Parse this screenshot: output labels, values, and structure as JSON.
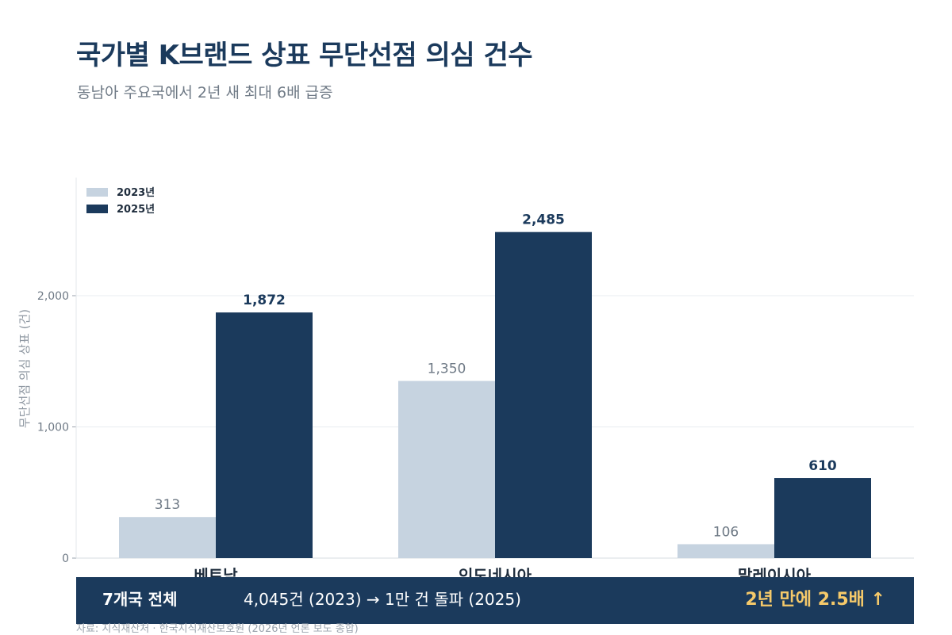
{
  "header": {
    "title": "국가별 K브랜드 상표 무단선점 의심 건수",
    "subtitle": "동남아 주요국에서 2년 새 최대 6배 급증"
  },
  "chart_data": {
    "type": "bar",
    "categories": [
      "베트남",
      "인도네시아",
      "말레이시아"
    ],
    "series": [
      {
        "name": "2023년",
        "values": [
          313,
          1350,
          106
        ],
        "color": "#c6d3e0",
        "label_color": "#6f7a86"
      },
      {
        "name": "2025년",
        "values": [
          1872,
          2485,
          610
        ],
        "color": "#1b3a5c",
        "label_color": "#1b3a5c"
      }
    ],
    "value_labels": [
      [
        "313",
        "1,350",
        "106"
      ],
      [
        "1,872",
        "2,485",
        "610"
      ]
    ],
    "ylabel": "무단선점 의심 상표 (건)",
    "ylim": [
      0,
      2900
    ],
    "yticks": [
      0,
      1000,
      2000
    ],
    "ytick_labels": [
      "0",
      "1,000",
      "2,000"
    ],
    "grid": true,
    "legend_position": "top-left"
  },
  "summary": {
    "label": "7개국 전체",
    "stat": "4,045건 (2023)  →  1만 건 돌파 (2025)",
    "highlight": "2년 만에 2.5배 ↑"
  },
  "source": "자료: 지식재산처 · 한국지식재산보호원 (2026년 언론 보도 종합)"
}
